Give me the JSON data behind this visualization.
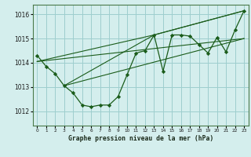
{
  "title": "Graphe pression niveau de la mer (hPa)",
  "background_color": "#d4eeed",
  "grid_color": "#9ecece",
  "line_color": "#1a5c1a",
  "marker_color": "#1a5c1a",
  "xlim": [
    -0.5,
    23.5
  ],
  "ylim": [
    1011.4,
    1016.4
  ],
  "yticks": [
    1012,
    1013,
    1014,
    1015,
    1016
  ],
  "xtick_labels": [
    "0",
    "1",
    "2",
    "3",
    "4",
    "5",
    "6",
    "7",
    "8",
    "9",
    "10",
    "11",
    "12",
    "13",
    "14",
    "15",
    "16",
    "17",
    "18",
    "19",
    "20",
    "21",
    "22",
    "23"
  ],
  "series1_x": [
    0,
    1,
    2,
    3,
    4,
    5,
    6,
    7,
    8,
    9,
    10,
    11,
    12,
    13,
    14,
    15,
    16,
    17,
    18,
    19,
    20,
    21,
    22,
    23
  ],
  "series1_y": [
    1014.3,
    1013.85,
    1013.55,
    1013.05,
    1012.75,
    1012.25,
    1012.18,
    1012.25,
    1012.25,
    1012.6,
    1013.5,
    1014.4,
    1014.5,
    1015.15,
    1013.65,
    1015.15,
    1015.15,
    1015.1,
    1014.75,
    1014.4,
    1015.05,
    1014.45,
    1015.35,
    1016.15
  ],
  "series2_x": [
    0,
    23
  ],
  "series2_y": [
    1014.05,
    1015.0
  ],
  "series3_x": [
    3,
    23
  ],
  "series3_y": [
    1013.05,
    1015.0
  ],
  "series4_x": [
    3,
    13,
    23
  ],
  "series4_y": [
    1013.05,
    1015.15,
    1016.15
  ],
  "series5_x": [
    0,
    13,
    23
  ],
  "series5_y": [
    1014.05,
    1015.15,
    1016.15
  ]
}
